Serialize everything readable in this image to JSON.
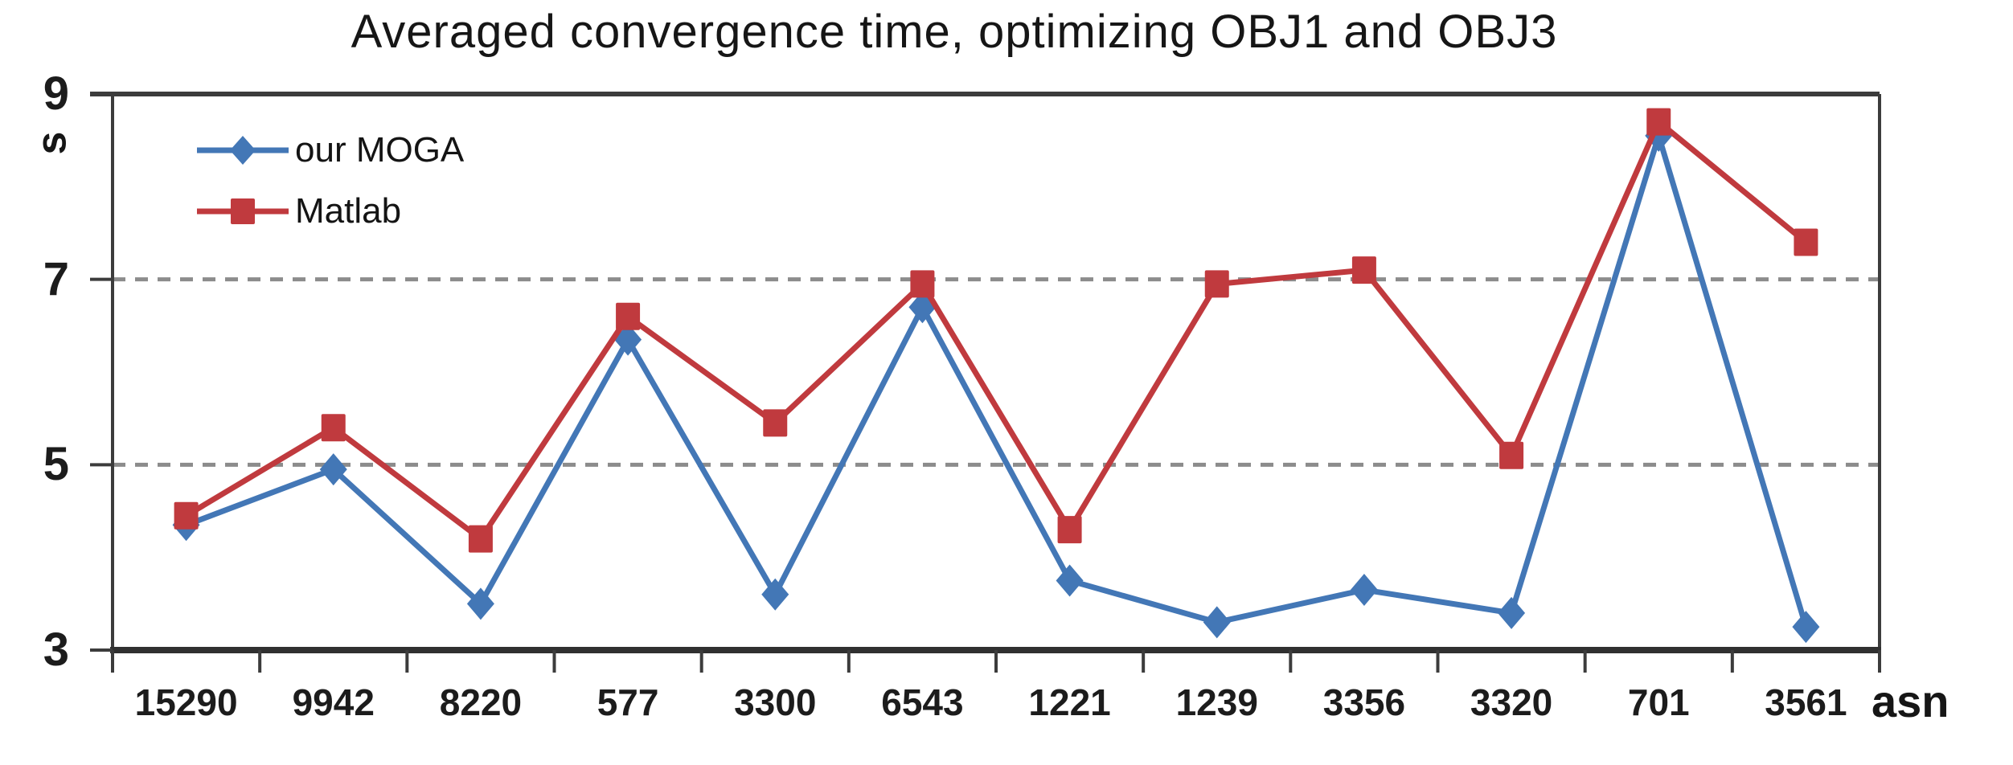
{
  "chart_data": {
    "type": "line",
    "title": "Averaged convergence time, optimizing OBJ1 and OBJ3",
    "ylabel": "s",
    "xlabel": "asn",
    "categories": [
      "15290",
      "9942",
      "8220",
      "577",
      "3300",
      "6543",
      "1221",
      "1239",
      "3356",
      "3320",
      "701",
      "3561"
    ],
    "series": [
      {
        "name": "our MOGA",
        "marker": "diamond",
        "color": "#4377b6",
        "values": [
          4.35,
          4.95,
          3.5,
          6.35,
          3.6,
          6.7,
          3.75,
          3.3,
          3.65,
          3.4,
          8.55,
          3.25
        ]
      },
      {
        "name": "Matlab",
        "marker": "square",
        "color": "#c03a3e",
        "values": [
          4.45,
          5.4,
          4.2,
          6.6,
          5.45,
          6.95,
          4.3,
          6.95,
          7.1,
          5.1,
          8.7,
          7.4
        ]
      }
    ],
    "yticks": [
      9,
      7,
      5,
      3
    ],
    "dashed_gridlines": [
      7,
      5
    ],
    "ylim": [
      3,
      9
    ],
    "grid": "horizontal-dashed",
    "legend_position": "top-left-inside",
    "colors": {
      "axis": "#3c3c3c",
      "gridline": "#8c8c8c",
      "tick_text": "#1c1c1c",
      "title_text": "#161616"
    }
  }
}
